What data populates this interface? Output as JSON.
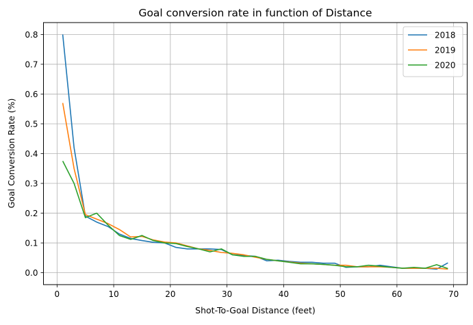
{
  "chart_data": {
    "type": "line",
    "title": "Goal conversion rate in function of Distance",
    "xlabel": "Shot-To-Goal Distance (feet)",
    "ylabel": "Goal Conversion Rate (%)",
    "xlim": [
      -2.4,
      72.4
    ],
    "ylim": [
      -0.04,
      0.84
    ],
    "x_ticks": [
      0,
      10,
      20,
      30,
      40,
      50,
      60,
      70
    ],
    "y_ticks": [
      0.0,
      0.1,
      0.2,
      0.3,
      0.4,
      0.5,
      0.6,
      0.7,
      0.8
    ],
    "x_tick_labels": [
      "0",
      "10",
      "20",
      "30",
      "40",
      "50",
      "60",
      "70"
    ],
    "y_tick_labels": [
      "0.0",
      "0.1",
      "0.2",
      "0.3",
      "0.4",
      "0.5",
      "0.6",
      "0.7",
      "0.8"
    ],
    "grid": true,
    "legend_position": "top-right",
    "x": [
      1,
      3,
      5,
      7,
      9,
      11,
      13,
      15,
      17,
      19,
      21,
      23,
      25,
      27,
      29,
      31,
      33,
      35,
      37,
      39,
      41,
      43,
      45,
      47,
      49,
      51,
      53,
      55,
      57,
      59,
      61,
      63,
      65,
      67,
      69
    ],
    "series": [
      {
        "name": "2018",
        "color": "#1f77b4",
        "values": [
          0.8,
          0.42,
          0.19,
          0.17,
          0.155,
          0.13,
          0.115,
          0.108,
          0.102,
          0.1,
          0.085,
          0.08,
          0.08,
          0.08,
          0.078,
          0.06,
          0.058,
          0.055,
          0.04,
          0.042,
          0.038,
          0.035,
          0.035,
          0.032,
          0.032,
          0.018,
          0.02,
          0.02,
          0.025,
          0.02,
          0.015,
          0.015,
          0.015,
          0.012,
          0.033
        ]
      },
      {
        "name": "2019",
        "color": "#ff7f0e",
        "values": [
          0.57,
          0.35,
          0.195,
          0.18,
          0.165,
          0.145,
          0.12,
          0.122,
          0.11,
          0.103,
          0.1,
          0.09,
          0.08,
          0.075,
          0.068,
          0.065,
          0.06,
          0.052,
          0.045,
          0.04,
          0.036,
          0.032,
          0.03,
          0.028,
          0.025,
          0.025,
          0.02,
          0.02,
          0.02,
          0.018,
          0.015,
          0.015,
          0.015,
          0.015,
          0.012
        ]
      },
      {
        "name": "2020",
        "color": "#2ca02c",
        "values": [
          0.375,
          0.3,
          0.185,
          0.2,
          0.16,
          0.125,
          0.112,
          0.125,
          0.108,
          0.1,
          0.098,
          0.088,
          0.08,
          0.07,
          0.08,
          0.06,
          0.055,
          0.055,
          0.045,
          0.04,
          0.035,
          0.03,
          0.03,
          0.028,
          0.025,
          0.02,
          0.02,
          0.025,
          0.022,
          0.018,
          0.015,
          0.018,
          0.015,
          0.027,
          0.014
        ]
      }
    ]
  }
}
